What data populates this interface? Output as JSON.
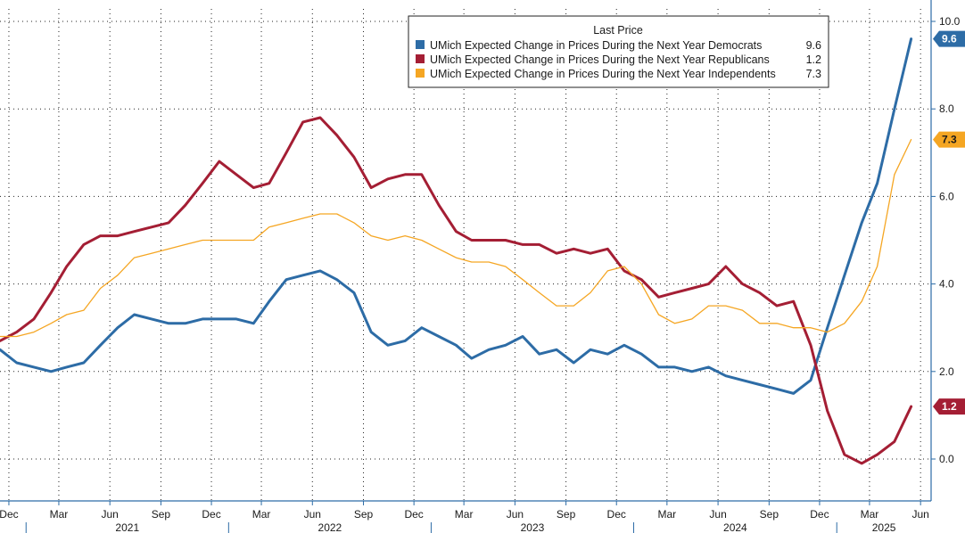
{
  "chart_data": {
    "type": "line",
    "title": "",
    "xlabel": "",
    "ylabel": "",
    "ylim": [
      -0.9,
      10.0
    ],
    "xlim": [
      "2020-11-15",
      "2025-06-20"
    ],
    "y_ticks": [
      0.0,
      2.0,
      4.0,
      6.0,
      8.0,
      10.0
    ],
    "y_tick_labels": [
      "0.0",
      "2.0",
      "4.0",
      "6.0",
      "8.0",
      "10.0"
    ],
    "x_month_ticks": [
      {
        "date": "2020-12-01",
        "label": "Dec"
      },
      {
        "date": "2021-03-01",
        "label": "Mar"
      },
      {
        "date": "2021-06-01",
        "label": "Jun"
      },
      {
        "date": "2021-09-01",
        "label": "Sep"
      },
      {
        "date": "2021-12-01",
        "label": "Dec"
      },
      {
        "date": "2022-03-01",
        "label": "Mar"
      },
      {
        "date": "2022-06-01",
        "label": "Jun"
      },
      {
        "date": "2022-09-01",
        "label": "Sep"
      },
      {
        "date": "2022-12-01",
        "label": "Dec"
      },
      {
        "date": "2023-03-01",
        "label": "Mar"
      },
      {
        "date": "2023-06-01",
        "label": "Jun"
      },
      {
        "date": "2023-09-01",
        "label": "Sep"
      },
      {
        "date": "2023-12-01",
        "label": "Dec"
      },
      {
        "date": "2024-03-01",
        "label": "Mar"
      },
      {
        "date": "2024-06-01",
        "label": "Jun"
      },
      {
        "date": "2024-09-01",
        "label": "Sep"
      },
      {
        "date": "2024-12-01",
        "label": "Dec"
      },
      {
        "date": "2025-03-01",
        "label": "Mar"
      },
      {
        "date": "2025-06-01",
        "label": "Jun"
      }
    ],
    "x_year_labels": [
      {
        "label": "2021",
        "start": "2021-01-01",
        "end": "2022-01-01"
      },
      {
        "label": "2022",
        "start": "2022-01-01",
        "end": "2023-01-01"
      },
      {
        "label": "2023",
        "start": "2023-01-01",
        "end": "2024-01-01"
      },
      {
        "label": "2024",
        "start": "2024-01-01",
        "end": "2025-01-01"
      },
      {
        "label": "2025",
        "start": "2025-01-01",
        "end": "2025-06-20"
      }
    ],
    "grid": true,
    "legend": {
      "title": "Last Price",
      "placement": "top-right"
    },
    "x": [
      "2020-11-15",
      "2020-12-15",
      "2021-01-15",
      "2021-02-15",
      "2021-03-15",
      "2021-04-15",
      "2021-05-15",
      "2021-06-15",
      "2021-07-15",
      "2021-08-15",
      "2021-09-15",
      "2021-10-15",
      "2021-11-15",
      "2021-12-15",
      "2022-01-15",
      "2022-02-15",
      "2022-03-15",
      "2022-04-15",
      "2022-05-15",
      "2022-06-15",
      "2022-07-15",
      "2022-08-15",
      "2022-09-15",
      "2022-10-15",
      "2022-11-15",
      "2022-12-15",
      "2023-01-15",
      "2023-02-15",
      "2023-03-15",
      "2023-04-15",
      "2023-05-15",
      "2023-06-15",
      "2023-07-15",
      "2023-08-15",
      "2023-09-15",
      "2023-10-15",
      "2023-11-15",
      "2023-12-15",
      "2024-01-15",
      "2024-02-15",
      "2024-03-15",
      "2024-04-15",
      "2024-05-15",
      "2024-06-15",
      "2024-07-15",
      "2024-08-15",
      "2024-09-15",
      "2024-10-15",
      "2024-11-15",
      "2024-12-15",
      "2025-01-15",
      "2025-02-15",
      "2025-03-15",
      "2025-04-15",
      "2025-05-15"
    ],
    "series": [
      {
        "name": "UMich Expected Change in Prices During the Next Year Democrats",
        "last": "9.6",
        "color": "#2d6ca6",
        "width": 3,
        "values": [
          2.5,
          2.2,
          2.1,
          2.0,
          2.1,
          2.2,
          2.6,
          3.0,
          3.3,
          3.2,
          3.1,
          3.1,
          3.2,
          3.2,
          3.2,
          3.1,
          3.6,
          4.1,
          4.2,
          4.3,
          4.1,
          3.8,
          2.9,
          2.6,
          2.7,
          3.0,
          2.8,
          2.6,
          2.3,
          2.5,
          2.6,
          2.8,
          2.4,
          2.5,
          2.2,
          2.5,
          2.4,
          2.6,
          2.4,
          2.1,
          2.1,
          2.0,
          2.1,
          1.9,
          1.8,
          1.7,
          1.6,
          1.5,
          1.8,
          3.0,
          4.2,
          5.4,
          6.3,
          8.0,
          9.6
        ]
      },
      {
        "name": "UMich Expected Change in Prices During the Next Year Republicans",
        "last": "1.2",
        "color": "#a41e34",
        "width": 3,
        "values": [
          2.7,
          2.9,
          3.2,
          3.8,
          4.4,
          4.9,
          5.1,
          5.1,
          5.2,
          5.3,
          5.4,
          5.8,
          6.3,
          6.8,
          6.5,
          6.2,
          6.3,
          7.0,
          7.7,
          7.8,
          7.4,
          6.9,
          6.2,
          6.4,
          6.5,
          6.5,
          5.8,
          5.2,
          5.0,
          5.0,
          5.0,
          4.9,
          4.9,
          4.7,
          4.8,
          4.7,
          4.8,
          4.3,
          4.1,
          3.7,
          3.8,
          3.9,
          4.0,
          4.4,
          4.0,
          3.8,
          3.5,
          3.6,
          2.6,
          1.1,
          0.1,
          -0.1,
          0.1,
          0.4,
          1.2
        ]
      },
      {
        "name": "UMich Expected Change in Prices During the Next Year Independents",
        "last": "7.3",
        "color": "#f5a623",
        "width": 1.3,
        "values": [
          2.8,
          2.8,
          2.9,
          3.1,
          3.3,
          3.4,
          3.9,
          4.2,
          4.6,
          4.7,
          4.8,
          4.9,
          5.0,
          5.0,
          5.0,
          5.0,
          5.3,
          5.4,
          5.5,
          5.6,
          5.6,
          5.4,
          5.1,
          5.0,
          5.1,
          5.0,
          4.8,
          4.6,
          4.5,
          4.5,
          4.4,
          4.1,
          3.8,
          3.5,
          3.5,
          3.8,
          4.3,
          4.4,
          4.0,
          3.3,
          3.1,
          3.2,
          3.5,
          3.5,
          3.4,
          3.1,
          3.1,
          3.0,
          3.0,
          2.9,
          3.1,
          3.6,
          4.4,
          6.5,
          7.3
        ]
      }
    ]
  }
}
